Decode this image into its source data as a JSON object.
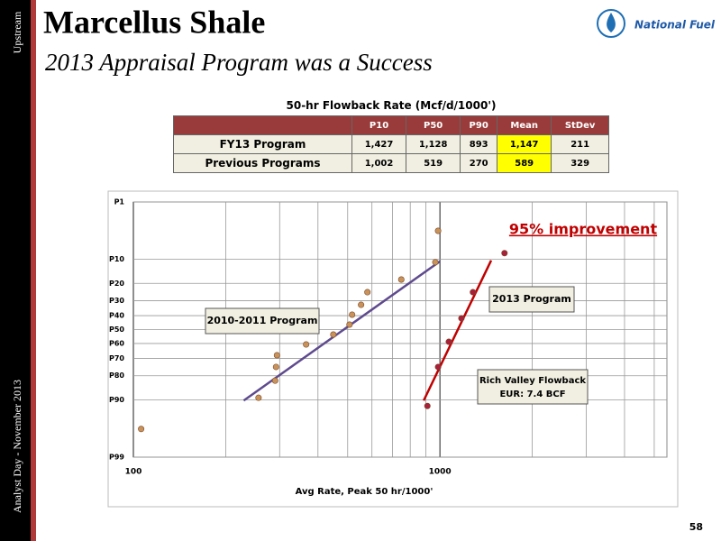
{
  "header": {
    "title": "Marcellus Shale",
    "subtitle": "2013 Appraisal Program was a Success",
    "logo": "National Fuel",
    "sidebar_top": "Upstream",
    "sidebar_bottom": "Analyst Day - November 2013",
    "page_number": 58
  },
  "table": {
    "title": "50-hr Flowback Rate (Mcf/d/1000')",
    "columns": [
      "P10",
      "P50",
      "P90",
      "Mean",
      "StDev"
    ],
    "highlight_column": "Mean",
    "highlight_color": "#ffff00",
    "rows": [
      [
        "FY13 Program",
        "1,427",
        "1,128",
        "893",
        "1,147",
        "211"
      ],
      [
        "Previous Programs",
        "1,002",
        "519",
        "270",
        "589",
        "329"
      ]
    ]
  },
  "chart_data": {
    "type": "scatter",
    "xscale": "log",
    "yscale": "probit",
    "yinverted": true,
    "grid": true,
    "xlabel": "Avg Rate, Peak 50 hr/1000'",
    "xlim": [
      100,
      5500
    ],
    "xticks": [
      100,
      1000
    ],
    "xminorticks": [
      200,
      300,
      400,
      500,
      600,
      700,
      800,
      900,
      2000,
      3000,
      4000,
      5000
    ],
    "ylim": [
      1,
      99
    ],
    "yticks": [
      {
        "value": 1,
        "label": "P1"
      },
      {
        "value": 10,
        "label": "P10"
      },
      {
        "value": 20,
        "label": "P20"
      },
      {
        "value": 30,
        "label": "P30"
      },
      {
        "value": 40,
        "label": "P40"
      },
      {
        "value": 50,
        "label": "P50"
      },
      {
        "value": 60,
        "label": "P60"
      },
      {
        "value": 70,
        "label": "P70"
      },
      {
        "value": 80,
        "label": "P80"
      },
      {
        "value": 90,
        "label": "P90"
      },
      {
        "value": 99,
        "label": "P99"
      }
    ],
    "series": [
      {
        "name": "2010-2011 Program",
        "color": "#c9925a",
        "x": [
          106,
          256,
          290,
          292,
          294,
          366,
          449,
          507,
          517,
          553,
          580,
          748,
          966,
          986
        ],
        "values": [
          96.5,
          89.3,
          82.4,
          75.2,
          68.0,
          60.7,
          53.6,
          46.4,
          39.3,
          32.6,
          24.8,
          18.1,
          11.0,
          3.6
        ],
        "fit": {
          "x": [
            229,
            1000
          ],
          "values": [
            90.2,
            10.7
          ],
          "color": "#5e4a8e"
        }
      },
      {
        "name": "2013 Program",
        "color": "#a8203a",
        "x": [
          910,
          986,
          1069,
          1175,
          1281,
          1624
        ],
        "values": [
          91.8,
          75.2,
          58.8,
          41.9,
          24.8,
          8.2
        ],
        "fit": {
          "x": [
            885,
            1469
          ],
          "values": [
            90.2,
            10.4
          ],
          "color": "#c00000"
        }
      }
    ],
    "annotations": [
      {
        "text": "95% improvement",
        "color": "#c00000"
      },
      {
        "text": [
          "Rich Valley Flowback",
          "EUR: 7.4 BCF"
        ]
      }
    ]
  }
}
